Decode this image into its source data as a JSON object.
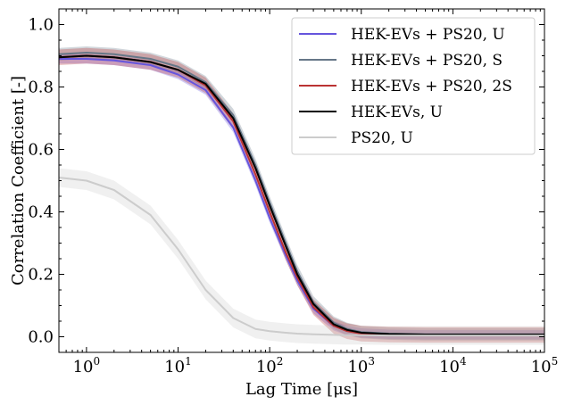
{
  "chart_data": {
    "type": "line",
    "xlabel": "Lag Time [μs]",
    "ylabel": "Correlation Coefficient [-]",
    "xscale": "log",
    "xlim": [
      0.5,
      100000
    ],
    "ylim": [
      -0.05,
      1.05
    ],
    "xticks": [
      {
        "value": 1,
        "base": "10",
        "exp": "0"
      },
      {
        "value": 10,
        "base": "10",
        "exp": "1"
      },
      {
        "value": 100,
        "base": "10",
        "exp": "2"
      },
      {
        "value": 1000,
        "base": "10",
        "exp": "3"
      },
      {
        "value": 10000,
        "base": "10",
        "exp": "4"
      },
      {
        "value": 100000,
        "base": "10",
        "exp": "5"
      }
    ],
    "yticks": [
      {
        "value": 0.0,
        "label": "0.0"
      },
      {
        "value": 0.2,
        "label": "0.2"
      },
      {
        "value": 0.4,
        "label": "0.4"
      },
      {
        "value": 0.6,
        "label": "0.6"
      },
      {
        "value": 0.8,
        "label": "0.8"
      },
      {
        "value": 1.0,
        "label": "1.0"
      }
    ],
    "grid": false,
    "legend_position": "top-right",
    "series": [
      {
        "name": "HEK-EVs + PS20, U",
        "color": "#6655dd",
        "x": [
          0.5,
          1,
          2,
          5,
          10,
          20,
          40,
          70,
          100,
          150,
          200,
          300,
          500,
          700,
          1000,
          2000,
          5000,
          10000,
          100000
        ],
        "y": [
          0.89,
          0.89,
          0.885,
          0.87,
          0.84,
          0.79,
          0.67,
          0.5,
          0.38,
          0.26,
          0.18,
          0.09,
          0.035,
          0.02,
          0.012,
          0.008,
          0.006,
          0.006,
          0.006
        ],
        "band": 0.015
      },
      {
        "name": "HEK-EVs + PS20, S",
        "color": "#667788",
        "x": [
          0.5,
          1,
          2,
          5,
          10,
          20,
          40,
          70,
          100,
          150,
          200,
          300,
          500,
          700,
          1000,
          2000,
          5000,
          10000,
          100000
        ],
        "y": [
          0.905,
          0.91,
          0.905,
          0.89,
          0.865,
          0.815,
          0.71,
          0.55,
          0.43,
          0.3,
          0.21,
          0.11,
          0.045,
          0.025,
          0.015,
          0.01,
          0.008,
          0.008,
          0.008
        ],
        "band": 0.02
      },
      {
        "name": "HEK-EVs + PS20, 2S",
        "color": "#bb3333",
        "x": [
          0.5,
          1,
          2,
          5,
          10,
          20,
          40,
          70,
          100,
          150,
          200,
          300,
          500,
          700,
          1000,
          2000,
          5000,
          10000,
          100000
        ],
        "y": [
          0.895,
          0.9,
          0.895,
          0.88,
          0.855,
          0.805,
          0.69,
          0.52,
          0.4,
          0.27,
          0.19,
          0.095,
          0.035,
          0.018,
          0.01,
          0.007,
          0.006,
          0.006,
          0.006
        ],
        "band": 0.025
      },
      {
        "name": "HEK-EVs, U",
        "color": "#000000",
        "x": [
          0.5,
          1,
          2,
          5,
          10,
          20,
          40,
          70,
          100,
          150,
          200,
          300,
          500,
          700,
          1000,
          2000,
          5000,
          10000,
          100000
        ],
        "y": [
          0.895,
          0.9,
          0.895,
          0.88,
          0.855,
          0.81,
          0.7,
          0.54,
          0.42,
          0.29,
          0.2,
          0.105,
          0.04,
          0.022,
          0.013,
          0.009,
          0.007,
          0.007,
          0.007
        ],
        "band": 0.0
      },
      {
        "name": "PS20, U",
        "color": "#cccccc",
        "x": [
          0.5,
          1,
          2,
          5,
          10,
          20,
          40,
          70,
          100,
          150,
          200,
          300,
          500,
          700,
          1000,
          2000,
          5000,
          10000,
          100000
        ],
        "y": [
          0.51,
          0.5,
          0.47,
          0.39,
          0.28,
          0.15,
          0.06,
          0.025,
          0.018,
          0.013,
          0.01,
          0.008,
          0.006,
          0.005,
          0.005,
          0.004,
          0.004,
          0.004,
          0.004
        ],
        "band": 0.03
      }
    ]
  }
}
